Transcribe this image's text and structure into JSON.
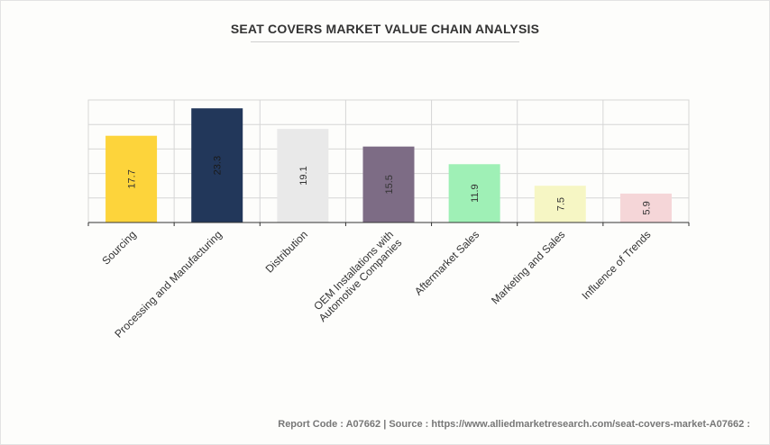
{
  "chart_data": {
    "type": "bar",
    "title": "SEAT COVERS MARKET VALUE CHAIN ANALYSIS",
    "categories": [
      "Sourcing",
      "Processing and Manufacturing",
      "Distribution",
      "OEM Installations with\nAutomotive Companies",
      "Aftermarket Sales",
      "Marketing and Sales",
      "Influence of Trends"
    ],
    "values": [
      17.7,
      23.3,
      19.1,
      15.5,
      11.9,
      7.5,
      5.9
    ],
    "labels": [
      "17.7",
      "23.3",
      "19.1",
      "15.5",
      "11.9",
      "7.5",
      "5.9"
    ],
    "colors": [
      "#fdd43b",
      "#22375a",
      "#e9e9e9",
      "#7d6c85",
      "#9ff0b6",
      "#f6f6c4",
      "#f5d6d8"
    ],
    "ylim": [
      0,
      25
    ],
    "grid": true,
    "xlabel": "",
    "ylabel": ""
  },
  "footer": {
    "text": "Report Code : A07662  |  Source : https://www.alliedmarketresearch.com/seat-covers-market-A07662 :"
  }
}
